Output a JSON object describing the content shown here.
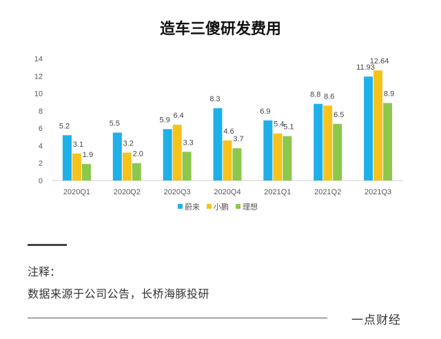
{
  "title": "造车三傻研发费用",
  "chart_data": {
    "type": "bar",
    "title": "造车三傻研发费用",
    "categories": [
      "2020Q1",
      "2020Q2",
      "2020Q3",
      "2020Q4",
      "2021Q1",
      "2021Q2",
      "2021Q3"
    ],
    "series": [
      {
        "name": "蔚来",
        "color": "#1fb0e8",
        "values": [
          5.2,
          5.5,
          5.9,
          8.3,
          6.9,
          8.8,
          11.93
        ],
        "labels": [
          "5.2",
          "5.5",
          "5.9",
          "8.3",
          "6.9",
          "8.8",
          "11.93"
        ]
      },
      {
        "name": "小鹏",
        "color": "#f7c21b",
        "values": [
          3.1,
          3.2,
          6.4,
          4.6,
          5.4,
          8.6,
          12.64
        ],
        "labels": [
          "3.1",
          "3.2",
          "6.4",
          "4.6",
          "5.4",
          "8.6",
          "12.64"
        ]
      },
      {
        "name": "理想",
        "color": "#8cc84b",
        "values": [
          1.9,
          2.0,
          3.3,
          3.7,
          5.1,
          6.5,
          8.9
        ],
        "labels": [
          "1.9",
          "2.0",
          "3.3",
          "3.7",
          "5.1",
          "6.5",
          "8.9"
        ]
      }
    ],
    "yticks": [
      "0",
      "2",
      "4",
      "6",
      "8",
      "10",
      "12",
      "14"
    ],
    "ylim": [
      0,
      14
    ],
    "xlabel": "",
    "ylabel": "",
    "legend": "bottom",
    "grid": false
  },
  "footer": {
    "note_label": "注释：",
    "note_text": "数据来源于公司公告，长桥海豚投研",
    "brand": "一点财经"
  }
}
